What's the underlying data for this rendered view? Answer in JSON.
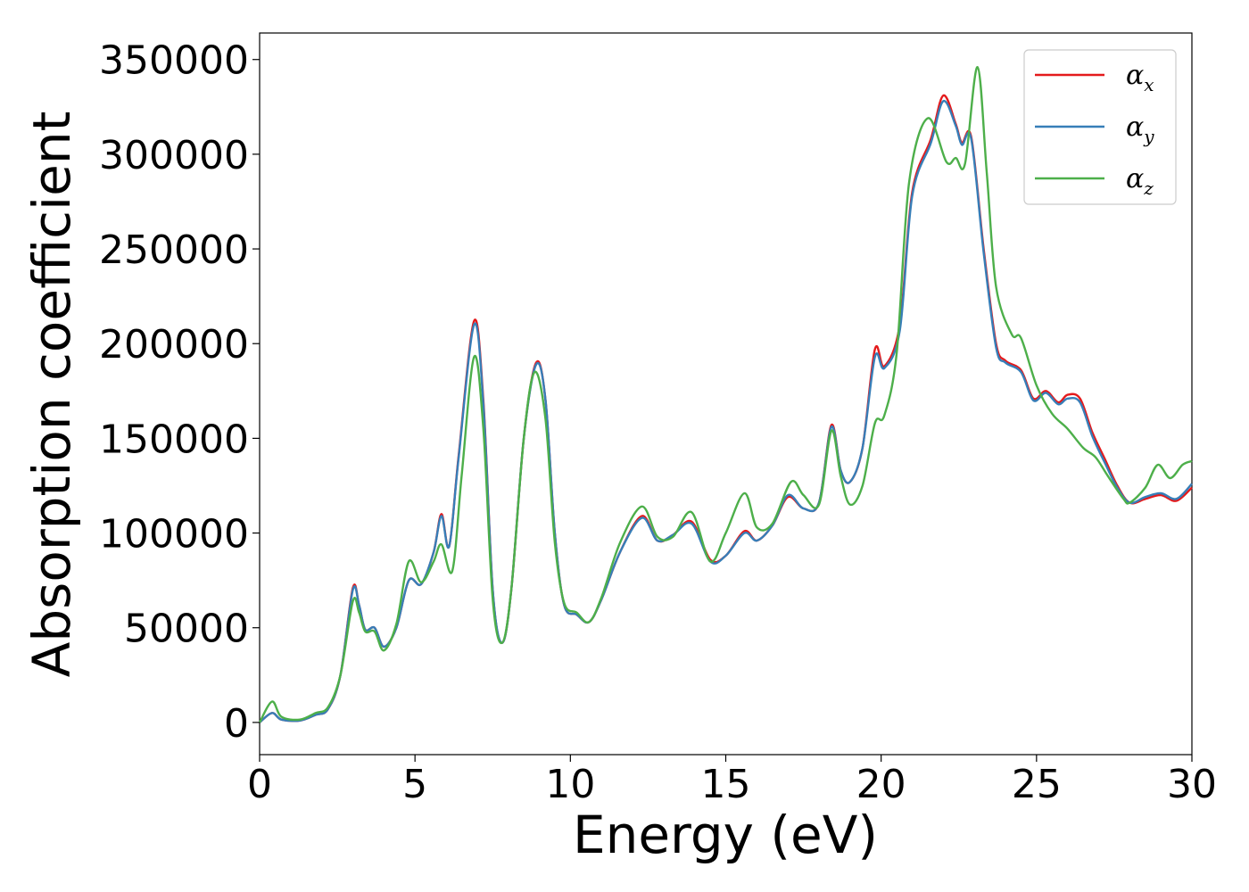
{
  "chart_data": {
    "type": "line",
    "title": "",
    "xlabel": "Energy (eV)",
    "ylabel": "Absorption coefficient",
    "xlim": [
      0,
      30
    ],
    "ylim": [
      -17000,
      364000
    ],
    "xticks": [
      0,
      5,
      10,
      15,
      20,
      25,
      30
    ],
    "xtick_labels": [
      "0",
      "5",
      "10",
      "15",
      "20",
      "25",
      "30"
    ],
    "yticks": [
      0,
      50000,
      100000,
      150000,
      200000,
      250000,
      300000,
      350000
    ],
    "ytick_labels": [
      "0",
      "50000",
      "100000",
      "150000",
      "200000",
      "250000",
      "300000",
      "350000"
    ],
    "grid": false,
    "legend_position": "top-right",
    "series": [
      {
        "name": "α",
        "subscript": "x",
        "color": "#e41a1c",
        "points": [
          [
            0,
            0
          ],
          [
            0.4,
            5000
          ],
          [
            0.7,
            1500
          ],
          [
            1.3,
            1000
          ],
          [
            1.8,
            4000
          ],
          [
            2.2,
            7000
          ],
          [
            2.6,
            25000
          ],
          [
            3.0,
            71000
          ],
          [
            3.2,
            62000
          ],
          [
            3.4,
            49000
          ],
          [
            3.7,
            50000
          ],
          [
            4.0,
            40000
          ],
          [
            4.4,
            50000
          ],
          [
            4.8,
            75000
          ],
          [
            5.2,
            73000
          ],
          [
            5.6,
            90000
          ],
          [
            5.85,
            110000
          ],
          [
            6.1,
            93000
          ],
          [
            6.4,
            140000
          ],
          [
            6.9,
            212000
          ],
          [
            7.2,
            170000
          ],
          [
            7.5,
            70000
          ],
          [
            7.8,
            42000
          ],
          [
            8.1,
            70000
          ],
          [
            8.5,
            150000
          ],
          [
            8.9,
            190000
          ],
          [
            9.2,
            170000
          ],
          [
            9.5,
            100000
          ],
          [
            9.8,
            62000
          ],
          [
            10.2,
            57000
          ],
          [
            10.6,
            53000
          ],
          [
            11.0,
            65000
          ],
          [
            11.6,
            90000
          ],
          [
            12.3,
            109000
          ],
          [
            12.8,
            96000
          ],
          [
            13.3,
            99000
          ],
          [
            13.9,
            106000
          ],
          [
            14.5,
            86000
          ],
          [
            15.0,
            88000
          ],
          [
            15.6,
            101000
          ],
          [
            16.0,
            96000
          ],
          [
            16.5,
            104000
          ],
          [
            17.0,
            119000
          ],
          [
            17.5,
            113000
          ],
          [
            18.0,
            116000
          ],
          [
            18.4,
            157000
          ],
          [
            18.7,
            133000
          ],
          [
            19.0,
            127000
          ],
          [
            19.4,
            145000
          ],
          [
            19.8,
            197000
          ],
          [
            20.1,
            188000
          ],
          [
            20.6,
            210000
          ],
          [
            21.0,
            280000
          ],
          [
            21.6,
            308000
          ],
          [
            22.0,
            331000
          ],
          [
            22.4,
            316000
          ],
          [
            22.6,
            306000
          ],
          [
            22.9,
            309000
          ],
          [
            23.3,
            250000
          ],
          [
            23.7,
            200000
          ],
          [
            24.0,
            191000
          ],
          [
            24.5,
            186000
          ],
          [
            24.9,
            171000
          ],
          [
            25.3,
            175000
          ],
          [
            25.7,
            169000
          ],
          [
            26.0,
            173000
          ],
          [
            26.4,
            171000
          ],
          [
            26.8,
            153000
          ],
          [
            27.2,
            139000
          ],
          [
            27.6,
            125000
          ],
          [
            28.0,
            116000
          ],
          [
            28.5,
            118000
          ],
          [
            29.0,
            120000
          ],
          [
            29.5,
            117000
          ],
          [
            30.0,
            124000
          ]
        ]
      },
      {
        "name": "α",
        "subscript": "y",
        "color": "#377eb8",
        "points": [
          [
            0,
            0
          ],
          [
            0.4,
            5000
          ],
          [
            0.7,
            1500
          ],
          [
            1.3,
            1000
          ],
          [
            1.8,
            4000
          ],
          [
            2.2,
            7000
          ],
          [
            2.6,
            25000
          ],
          [
            3.0,
            70000
          ],
          [
            3.2,
            62000
          ],
          [
            3.4,
            49000
          ],
          [
            3.7,
            50000
          ],
          [
            4.0,
            40000
          ],
          [
            4.4,
            50000
          ],
          [
            4.8,
            75000
          ],
          [
            5.2,
            73000
          ],
          [
            5.6,
            90000
          ],
          [
            5.85,
            109000
          ],
          [
            6.1,
            93000
          ],
          [
            6.4,
            139000
          ],
          [
            6.9,
            210000
          ],
          [
            7.2,
            168000
          ],
          [
            7.5,
            70000
          ],
          [
            7.8,
            42000
          ],
          [
            8.1,
            70000
          ],
          [
            8.5,
            150000
          ],
          [
            8.9,
            189000
          ],
          [
            9.2,
            170000
          ],
          [
            9.5,
            100000
          ],
          [
            9.8,
            62000
          ],
          [
            10.2,
            57000
          ],
          [
            10.6,
            53000
          ],
          [
            11.0,
            65000
          ],
          [
            11.6,
            90000
          ],
          [
            12.3,
            108000
          ],
          [
            12.8,
            96000
          ],
          [
            13.3,
            99000
          ],
          [
            13.9,
            105000
          ],
          [
            14.5,
            85000
          ],
          [
            15.0,
            88000
          ],
          [
            15.6,
            100000
          ],
          [
            16.0,
            96000
          ],
          [
            16.5,
            104000
          ],
          [
            17.0,
            120000
          ],
          [
            17.5,
            113000
          ],
          [
            18.0,
            116000
          ],
          [
            18.4,
            156000
          ],
          [
            18.7,
            133000
          ],
          [
            19.0,
            127000
          ],
          [
            19.4,
            145000
          ],
          [
            19.8,
            193000
          ],
          [
            20.1,
            187000
          ],
          [
            20.6,
            207000
          ],
          [
            21.0,
            278000
          ],
          [
            21.6,
            306000
          ],
          [
            22.0,
            328000
          ],
          [
            22.4,
            315000
          ],
          [
            22.6,
            305000
          ],
          [
            22.9,
            308000
          ],
          [
            23.3,
            248000
          ],
          [
            23.7,
            198000
          ],
          [
            24.0,
            190000
          ],
          [
            24.5,
            185000
          ],
          [
            24.9,
            170000
          ],
          [
            25.3,
            174000
          ],
          [
            25.7,
            168000
          ],
          [
            26.0,
            171000
          ],
          [
            26.4,
            169000
          ],
          [
            26.8,
            151000
          ],
          [
            27.2,
            137000
          ],
          [
            27.6,
            124000
          ],
          [
            28.0,
            116000
          ],
          [
            28.5,
            119000
          ],
          [
            29.0,
            121000
          ],
          [
            29.5,
            118000
          ],
          [
            30.0,
            126000
          ]
        ]
      },
      {
        "name": "α",
        "subscript": "z",
        "color": "#4daf4a",
        "points": [
          [
            0,
            0
          ],
          [
            0.4,
            11000
          ],
          [
            0.7,
            3000
          ],
          [
            1.3,
            1500
          ],
          [
            1.8,
            5000
          ],
          [
            2.2,
            8000
          ],
          [
            2.6,
            25000
          ],
          [
            3.0,
            64000
          ],
          [
            3.2,
            58000
          ],
          [
            3.4,
            48000
          ],
          [
            3.7,
            48000
          ],
          [
            4.0,
            38000
          ],
          [
            4.4,
            52000
          ],
          [
            4.8,
            85000
          ],
          [
            5.2,
            74000
          ],
          [
            5.6,
            85000
          ],
          [
            5.85,
            94000
          ],
          [
            6.2,
            80000
          ],
          [
            6.5,
            130000
          ],
          [
            6.9,
            193000
          ],
          [
            7.2,
            155000
          ],
          [
            7.5,
            65000
          ],
          [
            7.8,
            42000
          ],
          [
            8.1,
            70000
          ],
          [
            8.5,
            150000
          ],
          [
            8.85,
            185000
          ],
          [
            9.2,
            160000
          ],
          [
            9.5,
            95000
          ],
          [
            9.8,
            63000
          ],
          [
            10.2,
            58000
          ],
          [
            10.6,
            53000
          ],
          [
            11.0,
            66000
          ],
          [
            11.6,
            95000
          ],
          [
            12.3,
            114000
          ],
          [
            12.8,
            98000
          ],
          [
            13.3,
            98000
          ],
          [
            13.9,
            111000
          ],
          [
            14.5,
            85000
          ],
          [
            15.0,
            100000
          ],
          [
            15.6,
            121000
          ],
          [
            16.0,
            103000
          ],
          [
            16.5,
            105000
          ],
          [
            17.1,
            127000
          ],
          [
            17.5,
            120000
          ],
          [
            18.0,
            115000
          ],
          [
            18.4,
            154000
          ],
          [
            18.7,
            130000
          ],
          [
            19.0,
            115000
          ],
          [
            19.4,
            125000
          ],
          [
            19.8,
            158000
          ],
          [
            20.1,
            162000
          ],
          [
            20.5,
            195000
          ],
          [
            20.9,
            285000
          ],
          [
            21.5,
            319000
          ],
          [
            22.1,
            296000
          ],
          [
            22.4,
            298000
          ],
          [
            22.7,
            295000
          ],
          [
            23.1,
            346000
          ],
          [
            23.4,
            290000
          ],
          [
            23.7,
            230000
          ],
          [
            24.2,
            205000
          ],
          [
            24.5,
            203000
          ],
          [
            25.0,
            178000
          ],
          [
            25.5,
            163000
          ],
          [
            26.0,
            155000
          ],
          [
            26.5,
            145000
          ],
          [
            26.9,
            140000
          ],
          [
            27.3,
            130000
          ],
          [
            27.8,
            118000
          ],
          [
            28.0,
            116000
          ],
          [
            28.5,
            124000
          ],
          [
            28.9,
            136000
          ],
          [
            29.3,
            129000
          ],
          [
            29.7,
            136000
          ],
          [
            30.0,
            138000
          ]
        ]
      }
    ]
  }
}
